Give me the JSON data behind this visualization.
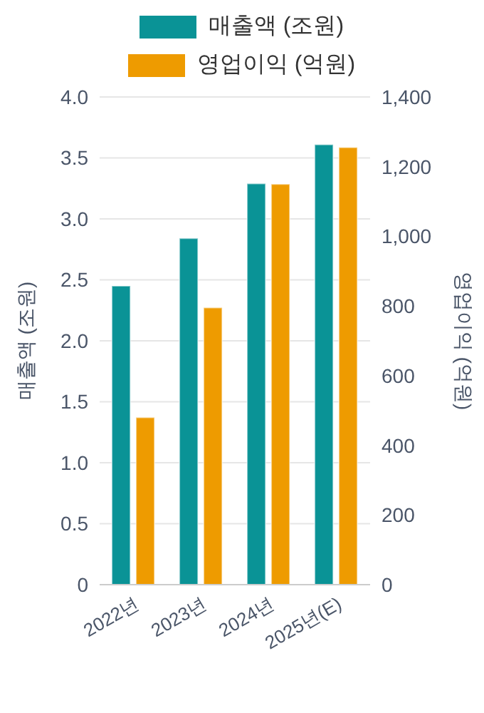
{
  "chart_data": {
    "type": "bar",
    "categories": [
      "2022년",
      "2023년",
      "2024년",
      "2025년(E)"
    ],
    "series": [
      {
        "name": "매출액 (조원)",
        "color": "#0a9396",
        "values": [
          2.45,
          2.84,
          3.29,
          3.61
        ]
      },
      {
        "name": "영업이익 (억원)",
        "color": "#ee9b00",
        "values": [
          480,
          795,
          1150,
          1255
        ],
        "axis": "y2"
      }
    ],
    "ylabel": "매출액 (조원)",
    "y2label": "영업이익 (억원)",
    "ylim": [
      0,
      4
    ],
    "yticks": [
      0,
      {
        "value": 0.5,
        "label": "0.5"
      },
      {
        "value": 1,
        "label": "1.0"
      },
      {
        "value": 1.5,
        "label": "1.5"
      },
      {
        "value": 2,
        "label": "2.0"
      },
      {
        "value": 2.5,
        "label": "2.5"
      },
      {
        "value": 3,
        "label": "3.0"
      },
      {
        "value": 3.5,
        "label": "3.5"
      },
      {
        "value": 4,
        "label": "4.0"
      }
    ],
    "y2lim": [
      0,
      1400
    ],
    "y2ticks": [
      0,
      200,
      400,
      600,
      800,
      {
        "value": 1000,
        "label": "1,000"
      },
      {
        "value": 1200,
        "label": "1,200"
      },
      {
        "value": 1400,
        "label": "1,400"
      }
    ],
    "grid": "y",
    "legend": "top"
  }
}
